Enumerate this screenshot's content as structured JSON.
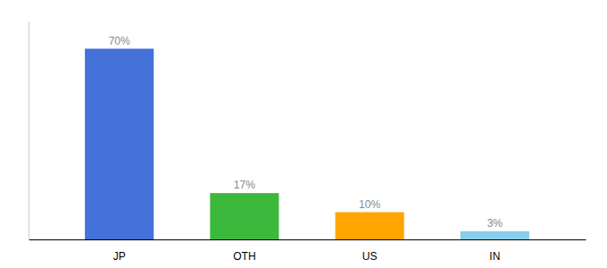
{
  "chart_data": {
    "type": "bar",
    "categories": [
      "JP",
      "OTH",
      "US",
      "IN"
    ],
    "values": [
      70,
      17,
      10,
      3
    ],
    "value_labels": [
      "70%",
      "17%",
      "10%",
      "3%"
    ],
    "colors": [
      "#4472D8",
      "#3CB83C",
      "#FFA500",
      "#87CEEB"
    ],
    "ylim": [
      0,
      80
    ],
    "grid": false,
    "data_labels": true,
    "tick_labels": "x"
  }
}
